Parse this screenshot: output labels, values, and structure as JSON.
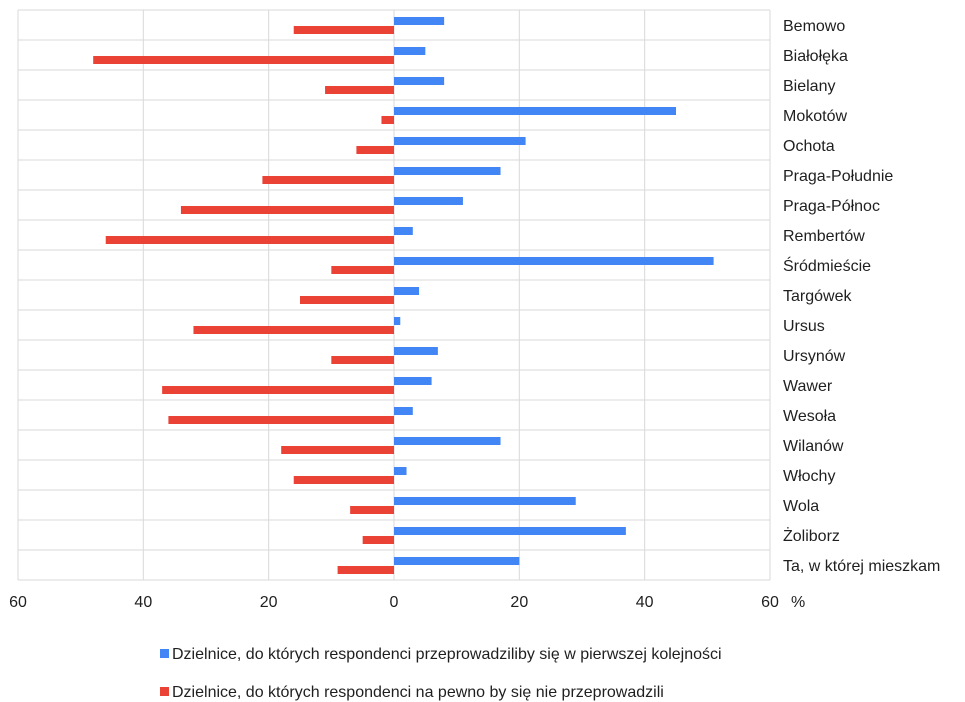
{
  "chart_data": {
    "type": "bar",
    "orientation": "horizontal-diverging",
    "categories": [
      "Bemowo",
      "Białołęka",
      "Bielany",
      "Mokotów",
      "Ochota",
      "Praga-Południe",
      "Praga-Północ",
      "Rembertów",
      "Śródmieście",
      "Targówek",
      "Ursus",
      "Ursynów",
      "Wawer",
      "Wesoła",
      "Wilanów",
      "Włochy",
      "Wola",
      "Żoliborz",
      "Ta, w której mieszkam"
    ],
    "series": [
      {
        "name": "Dzielnice, do których respondenci przeprowadziliby się w pierwszej kolejności",
        "color": "#4285f4",
        "direction": "right",
        "values": [
          8,
          5,
          8,
          45,
          21,
          17,
          11,
          3,
          51,
          4,
          1,
          7,
          6,
          3,
          17,
          2,
          29,
          37,
          20
        ]
      },
      {
        "name": "Dzielnice, do których respondenci na pewno by się nie przeprowadzili",
        "color": "#ea4335",
        "direction": "left",
        "values": [
          16,
          48,
          11,
          2,
          6,
          21,
          34,
          46,
          10,
          15,
          32,
          10,
          37,
          36,
          18,
          16,
          7,
          5,
          9
        ]
      }
    ],
    "xaxis": {
      "ticks": [
        {
          "value": -60,
          "label": "60"
        },
        {
          "value": -40,
          "label": "40"
        },
        {
          "value": -20,
          "label": "20"
        },
        {
          "value": 0,
          "label": "0"
        },
        {
          "value": 20,
          "label": "20"
        },
        {
          "value": 40,
          "label": "40"
        },
        {
          "value": 60,
          "label": "60"
        }
      ],
      "unit": "%",
      "range": [
        -60,
        60
      ]
    },
    "grid": true,
    "legend_position": "bottom"
  }
}
